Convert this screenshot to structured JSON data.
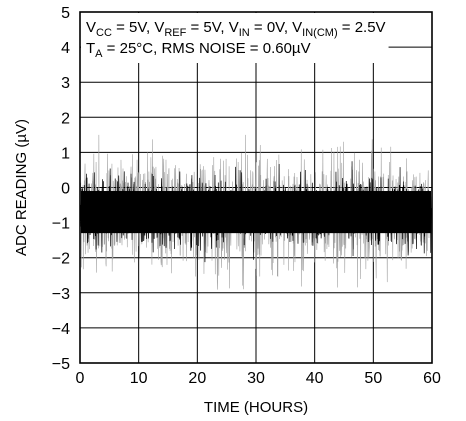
{
  "chart_data": {
    "type": "line",
    "title": "",
    "xlabel": "TIME (HOURS)",
    "ylabel": "ADC READING (µV)",
    "xlim": [
      0,
      60
    ],
    "ylim": [
      -5,
      5
    ],
    "x_ticks": [
      "0",
      "10",
      "20",
      "30",
      "40",
      "50",
      "60"
    ],
    "y_ticks": [
      "5",
      "4",
      "3",
      "2",
      "1",
      "0",
      "−1",
      "−2",
      "−3",
      "−4",
      "−5"
    ],
    "grid": true,
    "legend": "none",
    "annotations": {
      "line1": {
        "vcc": "V",
        "vcc_sub": "CC",
        "vcc_val": " = 5V, ",
        "vref": "V",
        "vref_sub": "REF",
        "vref_val": " = 5V, ",
        "vin": "V",
        "vin_sub": "IN",
        "vin_val": " = 0V, ",
        "vincm": "V",
        "vincm_sub": "IN(CM)",
        "vincm_val": " = 2.5V"
      },
      "line2": {
        "ta": "T",
        "ta_sub": "A",
        "ta_val": " = 25°C, RMS NOISE = 0.60µV"
      }
    },
    "series": [
      {
        "mean": -0.7,
        "rms_noise": 0.6,
        "dense_band": [
          -1.3,
          -0.1
        ],
        "peak_range": [
          -3.0,
          1.5
        ],
        "colors": [
          "#000000",
          "#a0a0a0"
        ]
      }
    ]
  }
}
